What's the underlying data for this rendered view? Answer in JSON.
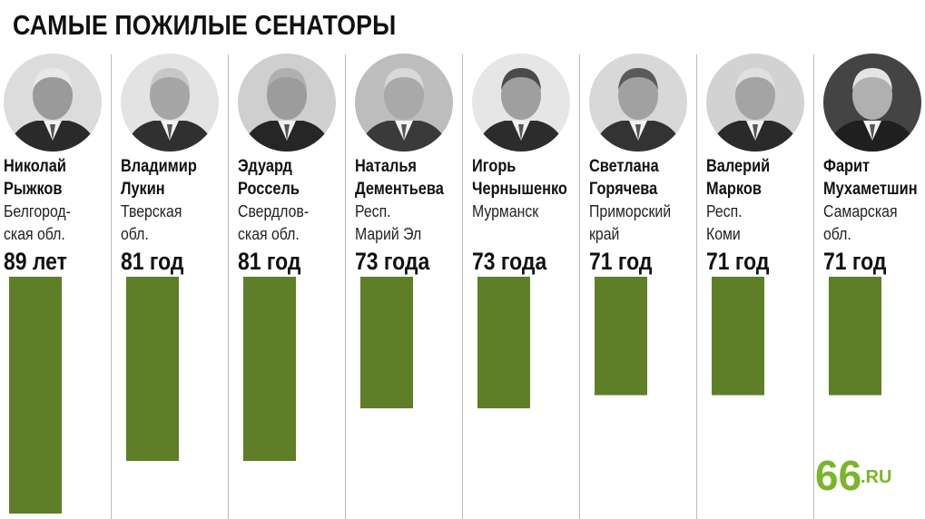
{
  "chart_data": {
    "type": "bar",
    "title": "САМЫЕ ПОЖИЛЫЕ СЕНАТОРЫ",
    "categories": [
      "Николай Рыжков",
      "Владимир Лукин",
      "Эдуард Россель",
      "Наталья Дементьева",
      "Игорь Чернышенко",
      "Светлана Горячева",
      "Валерий Марков",
      "Фарит Мухаметшин"
    ],
    "values": [
      89,
      81,
      81,
      73,
      73,
      71,
      71,
      71
    ],
    "ylabel": "",
    "bar_color": "#5e7f28",
    "senators": [
      {
        "first_name": "Николай",
        "last_name": "Рыжков",
        "region_lines": [
          "Белгород-",
          "ская обл."
        ],
        "age_label": "89 лет"
      },
      {
        "first_name": "Владимир",
        "last_name": "Лукин",
        "region_lines": [
          "Тверская",
          "обл."
        ],
        "age_label": "81 год"
      },
      {
        "first_name": "Эдуард",
        "last_name": "Россель",
        "region_lines": [
          "Свердлов-",
          "ская обл."
        ],
        "age_label": "81 год"
      },
      {
        "first_name": "Наталья",
        "last_name": "Дементьева",
        "region_lines": [
          "Респ.",
          "Марий Эл"
        ],
        "age_label": "73 года"
      },
      {
        "first_name": "Игорь",
        "last_name": "Чернышенко",
        "region_lines": [
          "Мурманск",
          ""
        ],
        "age_label": "73 года"
      },
      {
        "first_name": "Светлана",
        "last_name": "Горячева",
        "region_lines": [
          "Приморский",
          "край"
        ],
        "age_label": "71 год"
      },
      {
        "first_name": "Валерий",
        "last_name": "Марков",
        "region_lines": [
          "Респ.",
          "Коми"
        ],
        "age_label": "71 год"
      },
      {
        "first_name": "Фарит",
        "last_name": "Мухаметшин",
        "region_lines": [
          "Самарская",
          "обл."
        ],
        "age_label": "71 год"
      }
    ]
  },
  "branding": {
    "logo_text": ".RU",
    "logo_number": "66",
    "logo_color": "#7bb52a"
  }
}
